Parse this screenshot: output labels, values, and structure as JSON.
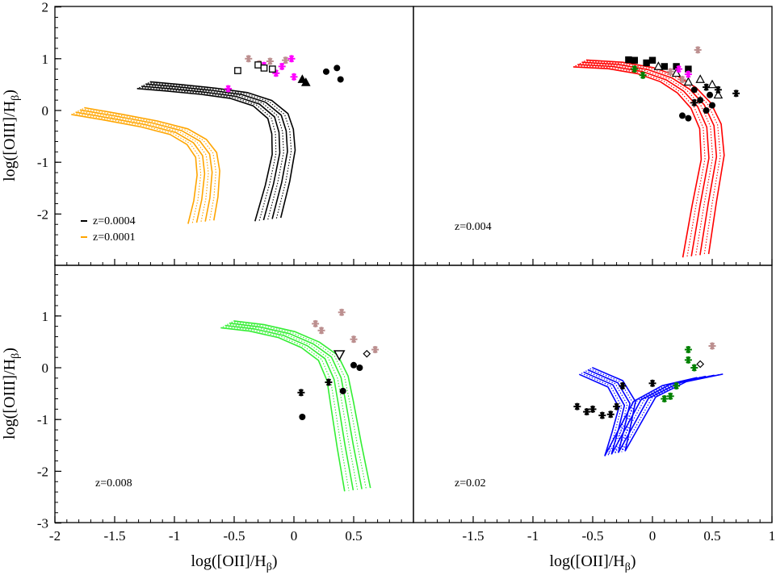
{
  "chart_data": {
    "type": "scatter",
    "layout": "2x2 grid of panels sharing axes",
    "xlabel": "log([OII]/H",
    "xlabel_sub": "β",
    "xlabel_close": ")",
    "ylabel": "log([OIII]/H",
    "ylabel_sub": "β",
    "ylabel_close": ")",
    "left_x_ticks": [
      "-2",
      "-1.5",
      "-1",
      "-0.5",
      "0",
      "0.5"
    ],
    "left_x_tick_values": [
      -2,
      -1.5,
      -1,
      -0.5,
      0,
      0.5
    ],
    "right_x_ticks": [
      "-1.5",
      "-1",
      "-0.5",
      "0",
      "0.5",
      "1"
    ],
    "right_x_tick_values": [
      -1.5,
      -1,
      -0.5,
      0,
      0.5,
      1
    ],
    "top_y_ticks": [
      "2",
      "1",
      "0",
      "-1",
      "-2"
    ],
    "top_y_tick_values": [
      2,
      1,
      0,
      -1,
      -2
    ],
    "bottom_y_ticks": [
      "1",
      "0",
      "-1",
      "-2",
      "-3"
    ],
    "bottom_y_tick_values": [
      1,
      0,
      -1,
      -2,
      -3
    ],
    "colors": {
      "z0004": "#000000",
      "z0001": "#ffa500",
      "z004": "#ff0000",
      "z008": "#33ee33",
      "z02": "#0000ff",
      "obs_magenta": "#ff00ff",
      "obs_rosy": "#bc8f8f",
      "obs_black": "#000000",
      "obs_green": "#008000"
    },
    "panels": [
      {
        "id": "top-left",
        "xlim": [
          -2,
          1.0
        ],
        "ylim": [
          -3.0,
          2
        ],
        "legend": [
          {
            "label": "z=0.0004",
            "color": "#000000"
          },
          {
            "label": "z=0.0001",
            "color": "#ffa500"
          }
        ],
        "models": [
          {
            "name": "z=0.0004",
            "color": "#000000",
            "x": [
              -1.25,
              -1.0,
              -0.7,
              -0.45,
              -0.25,
              -0.12,
              -0.08,
              -0.07,
              -0.12,
              -0.2
            ],
            "y": [
              0.5,
              0.45,
              0.38,
              0.3,
              0.15,
              -0.1,
              -0.4,
              -0.8,
              -1.4,
              -2.1
            ]
          },
          {
            "name": "z=0.0001",
            "color": "#ffa500",
            "x": [
              -1.8,
              -1.5,
              -1.2,
              -0.95,
              -0.8,
              -0.72,
              -0.7,
              -0.72,
              -0.76
            ],
            "y": [
              0.0,
              -0.12,
              -0.25,
              -0.4,
              -0.6,
              -0.85,
              -1.2,
              -1.7,
              -2.15
            ]
          }
        ],
        "points": [
          {
            "marker": "star",
            "color": "#bc8f8f",
            "x": [
              -0.38,
              -0.29,
              -0.2,
              -0.07
            ],
            "y": [
              1.0,
              0.9,
              0.95,
              0.97
            ]
          },
          {
            "marker": "star",
            "color": "#ff00ff",
            "x": [
              -0.55,
              -0.25,
              -0.15,
              -0.1,
              -0.02,
              0.0
            ],
            "y": [
              0.42,
              0.87,
              0.72,
              0.85,
              1.0,
              0.65
            ]
          },
          {
            "marker": "square-open",
            "color": "#000000",
            "x": [
              -0.47,
              -0.3,
              -0.25,
              -0.18
            ],
            "y": [
              0.77,
              0.88,
              0.82,
              0.8
            ]
          },
          {
            "marker": "triangle",
            "color": "#000000",
            "x": [
              0.07,
              0.1
            ],
            "y": [
              0.6,
              0.54
            ]
          },
          {
            "marker": "circle",
            "color": "#000000",
            "x": [
              0.27,
              0.36,
              0.39
            ],
            "y": [
              0.75,
              0.82,
              0.6
            ]
          }
        ]
      },
      {
        "id": "top-right",
        "xlim": [
          -2,
          1.0
        ],
        "ylim": [
          -3.0,
          2
        ],
        "label": "z=0.004",
        "models": [
          {
            "name": "z=0.004",
            "color": "#ff0000",
            "x": [
              -0.6,
              -0.3,
              -0.05,
              0.15,
              0.3,
              0.42,
              0.5,
              0.52,
              0.45,
              0.38
            ],
            "y": [
              0.92,
              0.88,
              0.78,
              0.62,
              0.4,
              0.1,
              -0.3,
              -0.9,
              -1.8,
              -2.8
            ]
          }
        ],
        "points": [
          {
            "marker": "square",
            "color": "#000000",
            "x": [
              -0.2,
              -0.15,
              -0.05,
              0.0,
              0.1,
              0.2,
              0.3
            ],
            "y": [
              0.98,
              0.97,
              0.92,
              0.97,
              0.85,
              0.85,
              0.8
            ]
          },
          {
            "marker": "triangle-open",
            "color": "#000000",
            "x": [
              0.05,
              0.2,
              0.3,
              0.4,
              0.5,
              0.55
            ],
            "y": [
              0.85,
              0.72,
              0.55,
              0.6,
              0.5,
              0.3
            ]
          },
          {
            "marker": "circle",
            "color": "#000000",
            "x": [
              0.25,
              0.3,
              0.35,
              0.4,
              0.45,
              0.48,
              0.5
            ],
            "y": [
              -0.1,
              -0.15,
              0.4,
              0.2,
              0.0,
              0.3,
              0.1
            ]
          },
          {
            "marker": "star",
            "color": "#000000",
            "x": [
              0.35,
              0.45,
              0.55,
              0.7
            ],
            "y": [
              0.15,
              0.45,
              0.4,
              0.33
            ]
          },
          {
            "marker": "star",
            "color": "#bc8f8f",
            "x": [
              0.38,
              0.15,
              0.25
            ],
            "y": [
              1.17,
              0.75,
              0.6
            ]
          },
          {
            "marker": "star",
            "color": "#008000",
            "x": [
              -0.08,
              -0.15
            ],
            "y": [
              0.68,
              0.8
            ]
          },
          {
            "marker": "star",
            "color": "#ff00ff",
            "x": [
              0.22,
              0.3
            ],
            "y": [
              0.8,
              0.7
            ]
          }
        ]
      },
      {
        "id": "bottom-left",
        "xlim": [
          -2,
          1.0
        ],
        "ylim": [
          -3,
          2.0
        ],
        "label": "z=0.008",
        "models": [
          {
            "name": "z=0.008",
            "color": "#33ee33",
            "x": [
              -0.55,
              -0.3,
              -0.05,
              0.15,
              0.3,
              0.38,
              0.42,
              0.48,
              0.55
            ],
            "y": [
              0.85,
              0.78,
              0.65,
              0.45,
              0.2,
              -0.2,
              -0.7,
              -1.5,
              -2.35
            ]
          }
        ],
        "points": [
          {
            "marker": "star",
            "color": "#bc8f8f",
            "x": [
              0.18,
              0.23,
              0.4,
              0.5,
              0.68
            ],
            "y": [
              0.85,
              0.72,
              1.07,
              0.55,
              0.35
            ]
          },
          {
            "marker": "star",
            "color": "#000000",
            "x": [
              0.06,
              0.29
            ],
            "y": [
              -0.48,
              -0.28
            ]
          },
          {
            "marker": "circle",
            "color": "#000000",
            "x": [
              0.07,
              0.41
            ],
            "y": [
              -0.95,
              -0.45
            ]
          },
          {
            "marker": "triangle-down-open",
            "color": "#000000",
            "x": [
              0.38
            ],
            "y": [
              0.25
            ]
          },
          {
            "marker": "diamond-open",
            "color": "#000000",
            "x": [
              0.61
            ],
            "y": [
              0.27
            ]
          },
          {
            "marker": "circle",
            "color": "#000000",
            "x": [
              0.5,
              0.55
            ],
            "y": [
              0.05,
              0.0
            ]
          }
        ]
      },
      {
        "id": "bottom-right",
        "xlim": [
          -2,
          1.0
        ],
        "ylim": [
          -3,
          2.0
        ],
        "label": "z=0.02",
        "models": [
          {
            "name": "z=0.02",
            "color": "#0000ff",
            "x": [
              -0.55,
              -0.3,
              -0.2,
              -0.25,
              -0.3,
              -0.05,
              0.2,
              0.5
            ],
            "y": [
              -0.05,
              -0.3,
              -0.7,
              -1.2,
              -1.65,
              -0.6,
              -0.3,
              -0.15
            ]
          }
        ],
        "points": [
          {
            "marker": "star",
            "color": "#000000",
            "x": [
              -0.63,
              -0.55,
              -0.5,
              -0.42,
              -0.35,
              -0.3,
              -0.25,
              0.0
            ],
            "y": [
              -0.75,
              -0.85,
              -0.8,
              -0.92,
              -0.9,
              -0.75,
              -0.35,
              -0.3
            ]
          },
          {
            "marker": "star",
            "color": "#008000",
            "x": [
              0.1,
              0.2,
              0.3,
              0.35,
              0.15,
              0.3
            ],
            "y": [
              -0.6,
              -0.35,
              0.15,
              0.0,
              -0.55,
              0.35
            ]
          },
          {
            "marker": "star",
            "color": "#bc8f8f",
            "x": [
              0.5
            ],
            "y": [
              0.42
            ]
          },
          {
            "marker": "diamond-open",
            "color": "#000000",
            "x": [
              0.4
            ],
            "y": [
              0.07
            ]
          }
        ]
      }
    ]
  }
}
